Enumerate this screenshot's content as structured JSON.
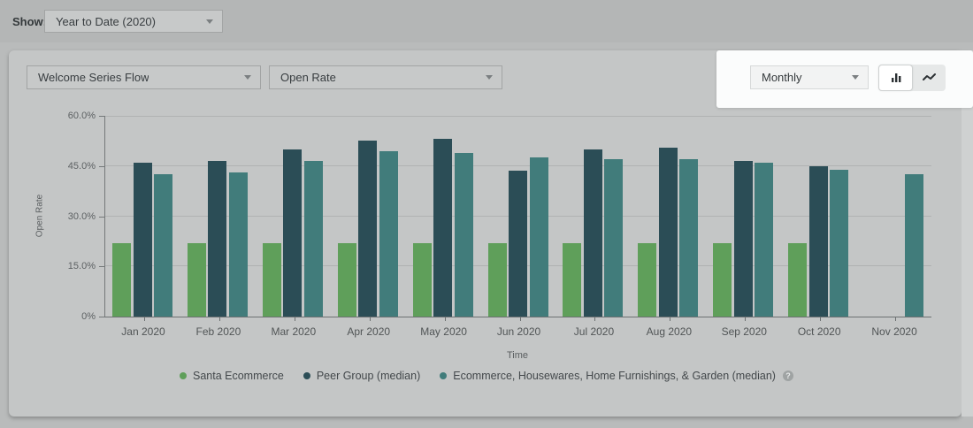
{
  "topbar": {
    "show_label": "Show:",
    "show_dropdown_value": "Year to Date (2020)"
  },
  "toolbar": {
    "flow_dropdown_value": "Welcome Series Flow",
    "metric_dropdown_value": "Open Rate",
    "interval_dropdown_value": "Monthly"
  },
  "icons": {
    "help_glyph": "?"
  },
  "colors": {
    "santa": "#5f9f5a",
    "peer_group": "#2b4d56",
    "industry": "#417c7b",
    "spotlight_bg": "#fbfcfc"
  },
  "chart_data": {
    "type": "bar",
    "title": "",
    "xlabel": "Time",
    "ylabel": "Open Rate",
    "ylim": [
      0,
      60
    ],
    "grid": true,
    "legend_position": "bottom",
    "ytick_values": [
      0,
      15,
      30,
      45,
      60
    ],
    "ytick_labels": [
      "0%",
      "15.0%",
      "30.0%",
      "45.0%",
      "60.0%"
    ],
    "categories": [
      "Jan 2020",
      "Feb 2020",
      "Mar 2020",
      "Apr 2020",
      "May 2020",
      "Jun 2020",
      "Jul 2020",
      "Aug 2020",
      "Sep 2020",
      "Oct 2020",
      "Nov 2020"
    ],
    "series": [
      {
        "name": "Santa Ecommerce",
        "color": "#5f9f5a",
        "values": [
          22,
          22,
          22,
          22,
          22,
          22,
          22,
          22,
          22,
          22,
          null
        ]
      },
      {
        "name": "Peer Group (median)",
        "color": "#2b4d56",
        "values": [
          46,
          46.5,
          50,
          52.5,
          53,
          43.5,
          50,
          50.5,
          46.5,
          45,
          null
        ]
      },
      {
        "name": "Ecommerce, Housewares, Home Furnishings, & Garden (median)",
        "color": "#417c7b",
        "values": [
          42.5,
          43,
          46.5,
          49.5,
          49,
          47.5,
          47,
          47,
          46,
          44,
          42.5
        ],
        "has_help_icon": true
      }
    ]
  }
}
